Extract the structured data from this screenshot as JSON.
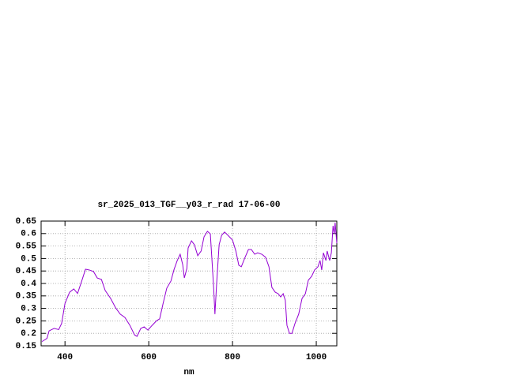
{
  "chart_data": {
    "type": "line",
    "title": "sr_2025_013_TGF__y03_r_rad 17-06-00",
    "x_label": "nm",
    "grid": true,
    "color": "#9400d3",
    "xlim": [
      343,
      1049
    ],
    "xticks": [
      400,
      600,
      800,
      1000
    ],
    "ylim": [
      0.15,
      0.65
    ],
    "yticks": [
      0.15,
      0.2,
      0.25,
      0.3,
      0.35,
      0.4,
      0.45,
      0.5,
      0.55,
      0.6,
      0.65
    ],
    "x": [
      345,
      357,
      362,
      374,
      385,
      392,
      400,
      411,
      421,
      430,
      440,
      449,
      458,
      468,
      477,
      487,
      496,
      509,
      521,
      532,
      543,
      555,
      566,
      572,
      581,
      589,
      598,
      608,
      619,
      626,
      634,
      643,
      653,
      660,
      668,
      675,
      681,
      685,
      691,
      694,
      702,
      709,
      717,
      725,
      732,
      740,
      747,
      751,
      755,
      758,
      762,
      768,
      774,
      781,
      789,
      800,
      808,
      815,
      821,
      830,
      838,
      845,
      853,
      860,
      870,
      879,
      887,
      894,
      902,
      909,
      915,
      921,
      926,
      930,
      936,
      942,
      949,
      958,
      966,
      974,
      981,
      989,
      996,
      1004,
      1009,
      1013,
      1017,
      1023,
      1026,
      1032,
      1036,
      1040,
      1043,
      1045,
      1049
    ],
    "values": [
      0.167,
      0.18,
      0.21,
      0.22,
      0.215,
      0.24,
      0.32,
      0.365,
      0.378,
      0.36,
      0.41,
      0.457,
      0.454,
      0.448,
      0.422,
      0.416,
      0.372,
      0.34,
      0.302,
      0.277,
      0.264,
      0.232,
      0.194,
      0.188,
      0.22,
      0.226,
      0.213,
      0.232,
      0.251,
      0.258,
      0.318,
      0.381,
      0.41,
      0.454,
      0.492,
      0.517,
      0.476,
      0.422,
      0.46,
      0.542,
      0.571,
      0.555,
      0.511,
      0.53,
      0.587,
      0.609,
      0.599,
      0.492,
      0.381,
      0.277,
      0.397,
      0.555,
      0.593,
      0.606,
      0.593,
      0.574,
      0.53,
      0.473,
      0.467,
      0.505,
      0.536,
      0.536,
      0.517,
      0.523,
      0.517,
      0.505,
      0.467,
      0.384,
      0.365,
      0.359,
      0.346,
      0.359,
      0.333,
      0.232,
      0.2,
      0.2,
      0.239,
      0.277,
      0.34,
      0.359,
      0.413,
      0.429,
      0.454,
      0.467,
      0.492,
      0.454,
      0.523,
      0.492,
      0.53,
      0.492,
      0.523,
      0.631,
      0.599,
      0.644,
      0.561
    ]
  }
}
